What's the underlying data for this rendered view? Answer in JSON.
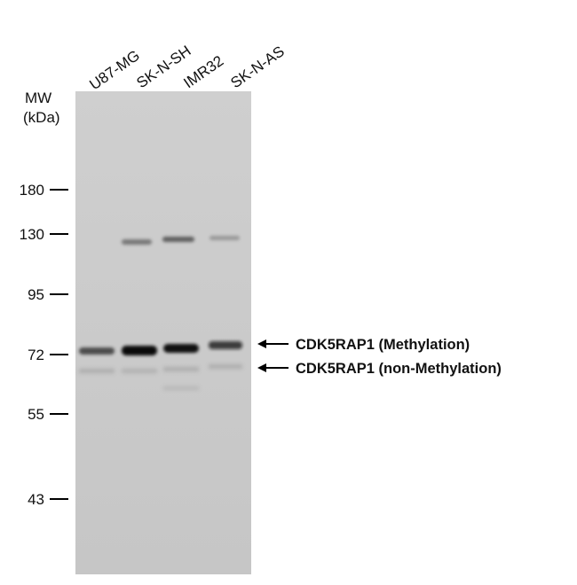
{
  "lanes": [
    "U87-MG",
    "SK-N-SH",
    "IMR32",
    "SK-N-AS"
  ],
  "mw_label": [
    "MW",
    "(kDa)"
  ],
  "markers": [
    "180",
    "130",
    "95",
    "72",
    "55",
    "43"
  ],
  "annotations": [
    "CDK5RAP1 (Methylation)",
    "CDK5RAP1 (non-Methylation)"
  ]
}
